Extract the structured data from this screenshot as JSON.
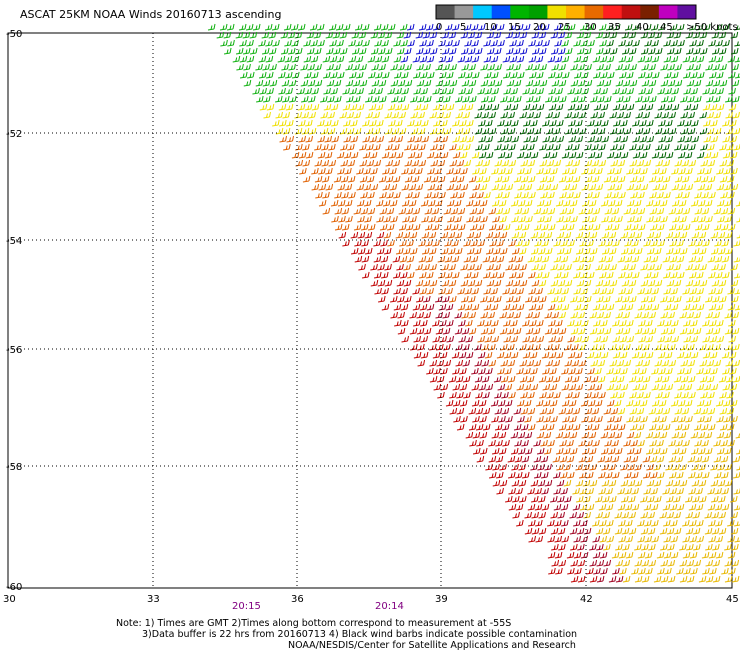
{
  "title": "ASCAT 25KM NOAA Winds 20160713 ascending",
  "legend": {
    "labels": [
      "0",
      "5",
      "10",
      "15",
      "20",
      "25",
      "30",
      "35",
      "40",
      "45",
      ">50 knots"
    ],
    "colors": [
      "#555555",
      "#999999",
      "#00c8ff",
      "#0050ff",
      "#00b400",
      "#00a000",
      "#f0e000",
      "#ffb000",
      "#e86a00",
      "#ff2020",
      "#c01010",
      "#7a2000",
      "#c000c0",
      "#6010a0"
    ]
  },
  "lat_labels": [
    "-50",
    "-52",
    "-54",
    "-56",
    "-58",
    "-60"
  ],
  "lon_labels": [
    "30",
    "33",
    "36",
    "39",
    "42",
    "45"
  ],
  "times": [
    "20:15",
    "20:14"
  ],
  "notes": [
    "Note: 1) Times are GMT 2)Times along bottom correspond to measurement at -55S",
    "3)Data buffer is 22 hrs from 20160713 4) Black wind barbs indicate possible contamination",
    "NOAA/NESDIS/Center for Satellite Applications and Research"
  ],
  "wind_colors": {
    "blue": "#1010d0",
    "green": "#10b010",
    "dark_green": "#006400",
    "yellow": "#f0e000",
    "gold": "#e8b800",
    "orange": "#e06000",
    "red": "#c00000",
    "dark_red": "#a00020"
  }
}
